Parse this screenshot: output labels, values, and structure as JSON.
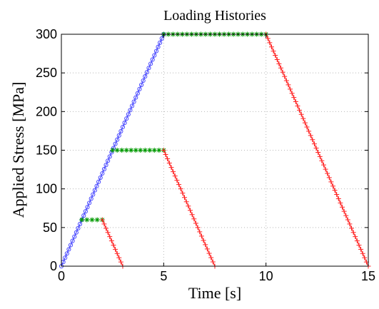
{
  "chart_data": {
    "type": "line",
    "title": "Loading Histories",
    "xlabel": "Time [s]",
    "ylabel": "Applied Stress [MPa]",
    "xlim": [
      0,
      15
    ],
    "ylim": [
      0,
      300
    ],
    "x_ticks": [
      "0",
      "5",
      "10",
      "15"
    ],
    "y_ticks": [
      "0",
      "50",
      "100",
      "150",
      "200",
      "250",
      "300"
    ],
    "grid": true,
    "grid_style": "dotted",
    "legend": "none",
    "colors": {
      "loading": "#3a3aff",
      "hold": "#009900",
      "unloading": "#ff2020"
    },
    "series": [
      {
        "phase": "loading",
        "marker": "circle",
        "color": "#3a3aff",
        "points": [
          [
            0,
            0
          ],
          [
            5,
            300
          ]
        ]
      },
      {
        "phase": "hold",
        "marker": "asterisk",
        "color": "#009900",
        "points": [
          [
            1,
            60
          ],
          [
            2,
            60
          ]
        ]
      },
      {
        "phase": "unloading",
        "marker": "plus",
        "color": "#ff2020",
        "points": [
          [
            2,
            60
          ],
          [
            3,
            0
          ]
        ]
      },
      {
        "phase": "hold",
        "marker": "asterisk",
        "color": "#009900",
        "points": [
          [
            2.5,
            150
          ],
          [
            5,
            150
          ]
        ]
      },
      {
        "phase": "unloading",
        "marker": "plus",
        "color": "#ff2020",
        "points": [
          [
            5,
            150
          ],
          [
            7.5,
            0
          ]
        ]
      },
      {
        "phase": "hold",
        "marker": "asterisk",
        "color": "#009900",
        "points": [
          [
            5,
            300
          ],
          [
            10,
            300
          ]
        ]
      },
      {
        "phase": "unloading",
        "marker": "plus",
        "color": "#ff2020",
        "points": [
          [
            10,
            300
          ],
          [
            15,
            0
          ]
        ]
      }
    ]
  }
}
